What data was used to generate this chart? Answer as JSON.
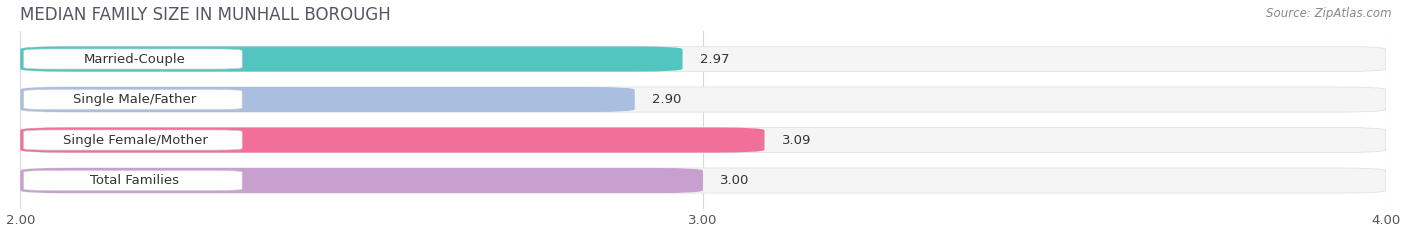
{
  "title": "MEDIAN FAMILY SIZE IN MUNHALL BOROUGH",
  "source": "Source: ZipAtlas.com",
  "categories": [
    "Married-Couple",
    "Single Male/Father",
    "Single Female/Mother",
    "Total Families"
  ],
  "values": [
    2.97,
    2.9,
    3.09,
    3.0
  ],
  "bar_colors": [
    "#52C5C0",
    "#AABFDF",
    "#F0709A",
    "#C8A0D0"
  ],
  "xlim": [
    2.0,
    4.0
  ],
  "xticks": [
    2.0,
    3.0,
    4.0
  ],
  "xtick_labels": [
    "2.00",
    "3.00",
    "4.00"
  ],
  "bar_height": 0.62,
  "background_color": "#ffffff",
  "label_fontsize": 9.5,
  "value_fontsize": 9.5,
  "title_fontsize": 12,
  "source_fontsize": 8.5,
  "title_color": "#555566",
  "source_color": "#888888",
  "grid_color": "#d8d8d8",
  "label_box_color": "#ffffff",
  "label_color": "#333333",
  "value_color": "#333333"
}
